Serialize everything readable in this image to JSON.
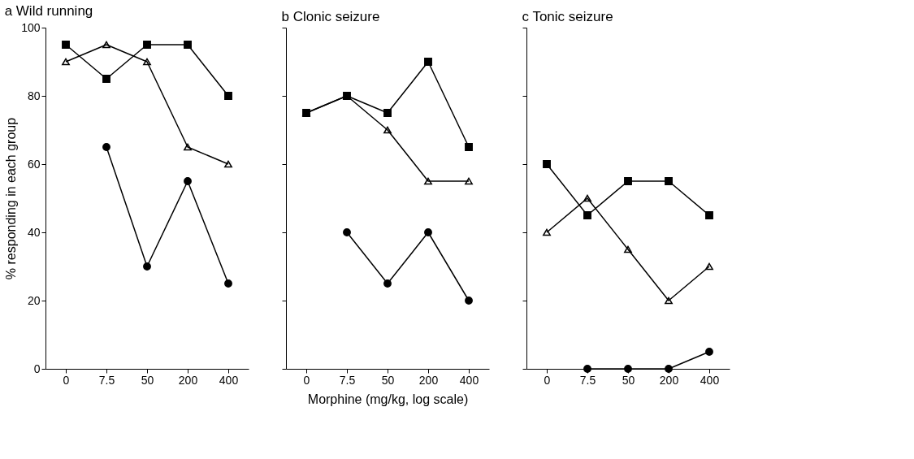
{
  "chart_data": [
    {
      "type": "line",
      "title": "a Wild running",
      "ylabel": "% responding in each group",
      "categories": [
        "0",
        "7.5",
        "50",
        "200",
        "400"
      ],
      "ylim": [
        0,
        100
      ],
      "yticks": [
        0,
        20,
        40,
        60,
        80,
        100
      ],
      "grid": false,
      "series": [
        {
          "color": "#000000",
          "marker": "square",
          "values": [
            95,
            85,
            95,
            95,
            80
          ]
        },
        {
          "color": "#000000",
          "marker": "triangle",
          "values": [
            90,
            95,
            90,
            65,
            60
          ]
        },
        {
          "color": "#000000",
          "marker": "circle",
          "values": [
            null,
            65,
            30,
            55,
            25
          ]
        }
      ]
    },
    {
      "type": "line",
      "title": "b Clonic seizure",
      "xlabel": "Morphine (mg/kg, log scale)",
      "categories": [
        "0",
        "7.5",
        "50",
        "200",
        "400"
      ],
      "ylim": [
        0,
        100
      ],
      "yticks": [
        0,
        20,
        40,
        60,
        80,
        100
      ],
      "tick_labels": "x",
      "grid": false,
      "series": [
        {
          "color": "#000000",
          "marker": "square",
          "values": [
            75,
            80,
            75,
            90,
            65
          ]
        },
        {
          "color": "#000000",
          "marker": "triangle",
          "values": [
            75,
            80,
            70,
            55,
            55
          ]
        },
        {
          "color": "#000000",
          "marker": "circle",
          "values": [
            null,
            40,
            25,
            40,
            20
          ]
        }
      ]
    },
    {
      "type": "line",
      "title": "c Tonic seizure",
      "categories": [
        "0",
        "7.5",
        "50",
        "200",
        "400"
      ],
      "ylim": [
        0,
        100
      ],
      "yticks": [
        0,
        20,
        40,
        60,
        80,
        100
      ],
      "tick_labels": "x",
      "grid": false,
      "series": [
        {
          "color": "#000000",
          "marker": "square",
          "values": [
            60,
            45,
            55,
            55,
            45
          ]
        },
        {
          "color": "#000000",
          "marker": "triangle",
          "values": [
            40,
            50,
            35,
            20,
            30
          ]
        },
        {
          "color": "#000000",
          "marker": "circle",
          "values": [
            null,
            0,
            0,
            0,
            5
          ]
        }
      ]
    }
  ]
}
